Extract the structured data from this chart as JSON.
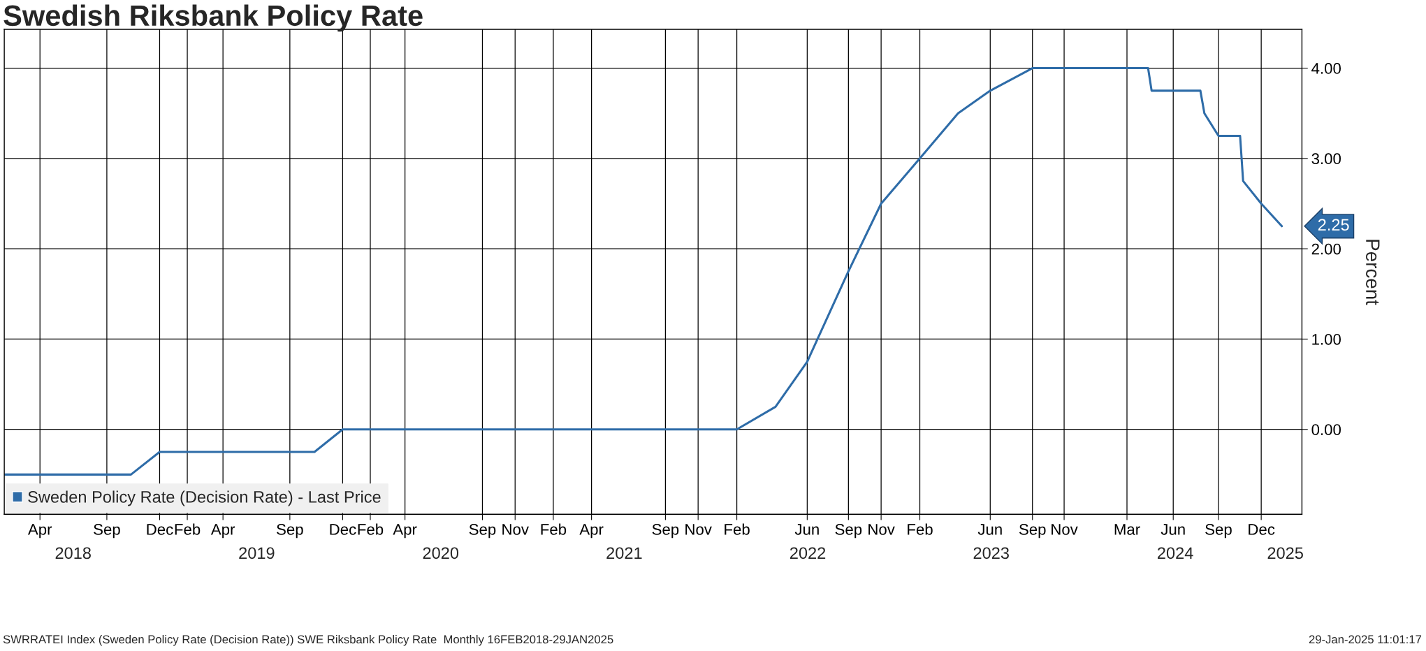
{
  "chart_data": {
    "type": "line",
    "title": "Swedish Riksbank Policy Rate",
    "ylabel": "Percent",
    "x": [
      "2018-02-14",
      "2018-04-26",
      "2018-07-04",
      "2018-09-06",
      "2018-10-24",
      "2018-12-20",
      "2019-02-13",
      "2019-04-25",
      "2019-07-03",
      "2019-09-05",
      "2019-10-24",
      "2019-12-19",
      "2020-02-12",
      "2020-04-21",
      "2020-07-01",
      "2020-09-22",
      "2020-11-26",
      "2021-02-10",
      "2021-04-27",
      "2021-07-01",
      "2021-09-21",
      "2021-11-25",
      "2022-02-10",
      "2022-04-28",
      "2022-06-30",
      "2022-09-20",
      "2022-11-24",
      "2023-02-09",
      "2023-04-26",
      "2023-06-29",
      "2023-09-21",
      "2023-11-23",
      "2024-02-01",
      "2024-03-27",
      "2024-05-08",
      "2024-05-15",
      "2024-06-27",
      "2024-08-20",
      "2024-08-28",
      "2024-09-25",
      "2024-11-07",
      "2024-11-13",
      "2024-12-19",
      "2025-01-29"
    ],
    "series": [
      {
        "name": "Sweden Policy Rate (Decision Rate) - Last Price",
        "color": "#2e6ca8",
        "values": [
          -0.5,
          -0.5,
          -0.5,
          -0.5,
          -0.5,
          -0.25,
          -0.25,
          -0.25,
          -0.25,
          -0.25,
          -0.25,
          0,
          0,
          0,
          0,
          0,
          0,
          0,
          0,
          0,
          0,
          0,
          0,
          0.25,
          0.75,
          1.75,
          2.5,
          3.0,
          3.5,
          3.75,
          4.0,
          4.0,
          4.0,
          4.0,
          4.0,
          3.75,
          3.75,
          3.75,
          3.5,
          3.25,
          3.25,
          2.75,
          2.5,
          2.25
        ]
      }
    ],
    "xlim": [
      "2018-02-14",
      "2025-03-10"
    ],
    "xticks": [
      {
        "value": "2018-04-26",
        "label": "Apr"
      },
      {
        "value": "2018-09-06",
        "label": "Sep"
      },
      {
        "value": "2018-12-20",
        "label": "Dec"
      },
      {
        "value": "2019-02-13",
        "label": "Feb"
      },
      {
        "value": "2019-04-25",
        "label": "Apr"
      },
      {
        "value": "2019-09-05",
        "label": "Sep"
      },
      {
        "value": "2019-12-19",
        "label": "Dec"
      },
      {
        "value": "2020-02-12",
        "label": "Feb"
      },
      {
        "value": "2020-04-21",
        "label": "Apr"
      },
      {
        "value": "2020-09-22",
        "label": "Sep"
      },
      {
        "value": "2020-11-26",
        "label": "Nov"
      },
      {
        "value": "2021-02-10",
        "label": "Feb"
      },
      {
        "value": "2021-04-27",
        "label": "Apr"
      },
      {
        "value": "2021-09-21",
        "label": "Sep"
      },
      {
        "value": "2021-11-25",
        "label": "Nov"
      },
      {
        "value": "2022-02-10",
        "label": "Feb"
      },
      {
        "value": "2022-06-30",
        "label": "Jun"
      },
      {
        "value": "2022-09-20",
        "label": "Sep"
      },
      {
        "value": "2022-11-24",
        "label": "Nov"
      },
      {
        "value": "2023-02-09",
        "label": "Feb"
      },
      {
        "value": "2023-06-29",
        "label": "Jun"
      },
      {
        "value": "2023-09-21",
        "label": "Sep"
      },
      {
        "value": "2023-11-23",
        "label": "Nov"
      },
      {
        "value": "2024-03-27",
        "label": "Mar"
      },
      {
        "value": "2024-06-27",
        "label": "Jun"
      },
      {
        "value": "2024-09-25",
        "label": "Sep"
      },
      {
        "value": "2024-12-19",
        "label": "Dec"
      }
    ],
    "x2lim": [
      "2018-02-14",
      "2025-03-10"
    ],
    "x2ticks": [
      {
        "value": "2018-07-01",
        "label": "2018"
      },
      {
        "value": "2019-07-01",
        "label": "2019"
      },
      {
        "value": "2020-07-01",
        "label": "2020"
      },
      {
        "value": "2021-07-01",
        "label": "2021"
      },
      {
        "value": "2022-07-01",
        "label": "2022"
      },
      {
        "value": "2023-07-01",
        "label": "2023"
      },
      {
        "value": "2024-07-01",
        "label": "2024"
      },
      {
        "value": "2025-02-05",
        "label": "2025"
      }
    ],
    "ylim": [
      -0.94,
      4.43
    ],
    "yticks": [
      {
        "value": 0,
        "label": "0.00"
      },
      {
        "value": 1,
        "label": "1.00"
      },
      {
        "value": 2,
        "label": "2.00"
      },
      {
        "value": 3,
        "label": "3.00"
      },
      {
        "value": 4,
        "label": "4.00"
      }
    ],
    "grid": true,
    "legend": "bottom left",
    "marker": "none",
    "line_style": "solid",
    "annotations": [
      {
        "text": "2.25",
        "x": "2025-01-29",
        "y": 2.25
      },
      "SWRRATEI Index (Sweden Policy Rate (Decision Rate)) SWE Riksbank Policy Rate  Monthly 16FEB2018-29JAN2025",
      "29-Jan-2025 11:01:17"
    ]
  }
}
